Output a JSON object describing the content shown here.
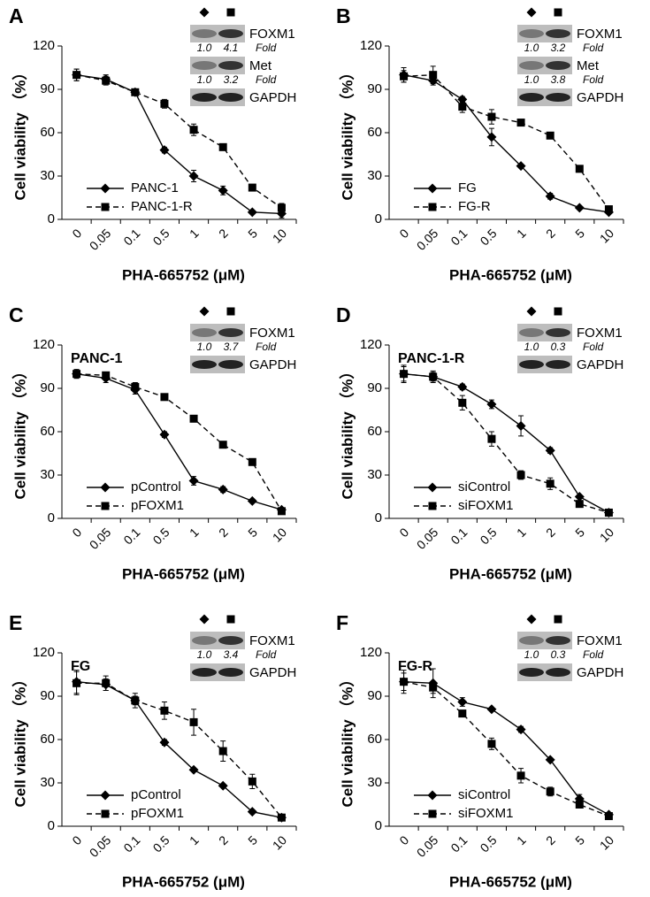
{
  "chart_data": [
    {
      "type": "line",
      "panel": "A",
      "ylabel": "Cell viability （%）",
      "xlabel": "PHA-665752 (μM)",
      "categories": [
        "0",
        "0.05",
        "0.1",
        "0.5",
        "1",
        "2",
        "5",
        "10"
      ],
      "ylim": [
        0,
        120
      ],
      "yticks": [
        0,
        30,
        60,
        90,
        120
      ],
      "legend": "lower left",
      "series": [
        {
          "name": "PANC-1",
          "color": "#000000",
          "dashed": false,
          "marker": "diamond",
          "values": [
            100,
            97,
            88,
            48,
            30,
            20,
            5,
            4
          ],
          "errors": [
            4,
            3,
            2,
            2,
            4,
            3,
            1,
            3
          ]
        },
        {
          "name": "PANC-1-R",
          "color": "#000000",
          "dashed": true,
          "marker": "square",
          "values": [
            100,
            96,
            88,
            80,
            62,
            50,
            22,
            8
          ],
          "errors": [
            4,
            3,
            2,
            3,
            4,
            2,
            2,
            3
          ]
        }
      ],
      "blot": [
        {
          "label": "FOXM1",
          "folds": [
            "1.0",
            "4.1"
          ],
          "fold_label": "Fold"
        },
        {
          "label": "Met",
          "folds": [
            "1.0",
            "3.2"
          ],
          "fold_label": "Fold"
        },
        {
          "label": "GAPDH"
        }
      ]
    },
    {
      "type": "line",
      "panel": "B",
      "ylabel": "Cell viability （%）",
      "xlabel": "PHA-665752 (μM)",
      "categories": [
        "0",
        "0.05",
        "0.1",
        "0.5",
        "1",
        "2",
        "5",
        "10"
      ],
      "ylim": [
        0,
        120
      ],
      "yticks": [
        0,
        30,
        60,
        90,
        120
      ],
      "legend": "lower left",
      "series": [
        {
          "name": "FG",
          "color": "#000000",
          "dashed": false,
          "marker": "diamond",
          "values": [
            100,
            96,
            83,
            57,
            37,
            16,
            8,
            5
          ],
          "errors": [
            5,
            3,
            2,
            6,
            1,
            2,
            1,
            1
          ]
        },
        {
          "name": "FG-R",
          "color": "#000000",
          "dashed": true,
          "marker": "square",
          "values": [
            99,
            100,
            78,
            71,
            67,
            58,
            35,
            7
          ],
          "errors": [
            4,
            6,
            4,
            5,
            2,
            2,
            2,
            2
          ]
        }
      ],
      "blot": [
        {
          "label": "FOXM1",
          "folds": [
            "1.0",
            "3.2"
          ],
          "fold_label": "Fold"
        },
        {
          "label": "Met",
          "folds": [
            "1.0",
            "3.8"
          ],
          "fold_label": "Fold"
        },
        {
          "label": "GAPDH"
        }
      ]
    },
    {
      "type": "line",
      "panel": "C",
      "subtitle": "PANC-1",
      "ylabel": "Cell viability （%）",
      "xlabel": "PHA-665752 (μM)",
      "categories": [
        "0",
        "0.05",
        "0.1",
        "0.5",
        "1",
        "2",
        "5",
        "10"
      ],
      "ylim": [
        0,
        120
      ],
      "yticks": [
        0,
        30,
        60,
        90,
        120
      ],
      "legend": "lower left",
      "series": [
        {
          "name": "pControl",
          "color": "#000000",
          "dashed": false,
          "marker": "diamond",
          "values": [
            100,
            97,
            89,
            58,
            26,
            20,
            12,
            6
          ],
          "errors": [
            3,
            3,
            3,
            2,
            3,
            2,
            1,
            1
          ]
        },
        {
          "name": "pFOXM1",
          "color": "#000000",
          "dashed": true,
          "marker": "square",
          "values": [
            100,
            99,
            91,
            84,
            69,
            51,
            39,
            5
          ],
          "errors": [
            3,
            2,
            3,
            1,
            2,
            1,
            1,
            1
          ]
        }
      ],
      "blot": [
        {
          "label": "FOXM1",
          "folds": [
            "1.0",
            "3.7"
          ],
          "fold_label": "Fold"
        },
        {
          "label": "GAPDH"
        }
      ]
    },
    {
      "type": "line",
      "panel": "D",
      "subtitle": "PANC-1-R",
      "ylabel": "Cell viability （%）",
      "xlabel": "PHA-665752 (μM)",
      "categories": [
        "0",
        "0.05",
        "0.1",
        "0.5",
        "1",
        "2",
        "5",
        "10"
      ],
      "ylim": [
        0,
        120
      ],
      "yticks": [
        0,
        30,
        60,
        90,
        120
      ],
      "legend": "lower left",
      "series": [
        {
          "name": "siControl",
          "color": "#000000",
          "dashed": false,
          "marker": "diamond",
          "values": [
            100,
            98,
            91,
            79,
            64,
            47,
            15,
            4
          ],
          "errors": [
            6,
            4,
            2,
            3,
            7,
            2,
            1,
            1
          ]
        },
        {
          "name": "siFOXM1",
          "color": "#000000",
          "dashed": true,
          "marker": "square",
          "values": [
            100,
            98,
            80,
            55,
            30,
            24,
            10,
            4
          ],
          "errors": [
            5,
            3,
            5,
            5,
            3,
            4,
            1,
            1
          ]
        }
      ],
      "blot": [
        {
          "label": "FOXM1",
          "folds": [
            "1.0",
            "0.3"
          ],
          "fold_label": "Fold"
        },
        {
          "label": "GAPDH"
        }
      ]
    },
    {
      "type": "line",
      "panel": "E",
      "subtitle": "FG",
      "ylabel": "Cell viability （%）",
      "xlabel": "PHA-665752 (μM)",
      "categories": [
        "0",
        "0.05",
        "0.1",
        "0.5",
        "1",
        "2",
        "5",
        "10"
      ],
      "ylim": [
        0,
        120
      ],
      "yticks": [
        0,
        30,
        60,
        90,
        120
      ],
      "legend": "lower left",
      "series": [
        {
          "name": "pControl",
          "color": "#000000",
          "dashed": false,
          "marker": "diamond",
          "values": [
            100,
            98,
            87,
            58,
            39,
            28,
            10,
            6
          ],
          "errors": [
            8,
            4,
            3,
            2,
            1,
            1,
            1,
            1
          ]
        },
        {
          "name": "pFOXM1",
          "color": "#000000",
          "dashed": true,
          "marker": "square",
          "values": [
            99,
            99,
            87,
            80,
            72,
            52,
            31,
            6
          ],
          "errors": [
            8,
            5,
            5,
            6,
            9,
            7,
            5,
            2
          ]
        }
      ],
      "blot": [
        {
          "label": "FOXM1",
          "folds": [
            "1.0",
            "3.4"
          ],
          "fold_label": "Fold"
        },
        {
          "label": "GAPDH"
        }
      ]
    },
    {
      "type": "line",
      "panel": "F",
      "subtitle": "FG-R",
      "ylabel": "Cell viability （%）",
      "xlabel": "PHA-665752 (μM)",
      "categories": [
        "0",
        "0.05",
        "0.1",
        "0.5",
        "1",
        "2",
        "5",
        "10"
      ],
      "ylim": [
        0,
        120
      ],
      "yticks": [
        0,
        30,
        60,
        90,
        120
      ],
      "legend": "lower left",
      "series": [
        {
          "name": "siControl",
          "color": "#000000",
          "dashed": false,
          "marker": "diamond",
          "values": [
            100,
            99,
            86,
            81,
            67,
            46,
            19,
            8
          ],
          "errors": [
            8,
            10,
            3,
            1,
            2,
            1,
            3,
            1
          ]
        },
        {
          "name": "siFOXM1",
          "color": "#000000",
          "dashed": true,
          "marker": "square",
          "values": [
            100,
            96,
            78,
            57,
            35,
            24,
            15,
            7
          ],
          "errors": [
            6,
            4,
            2,
            4,
            5,
            3,
            2,
            1
          ]
        }
      ],
      "blot": [
        {
          "label": "FOXM1",
          "folds": [
            "1.0",
            "0.3"
          ],
          "fold_label": "Fold"
        },
        {
          "label": "GAPDH"
        }
      ]
    }
  ]
}
